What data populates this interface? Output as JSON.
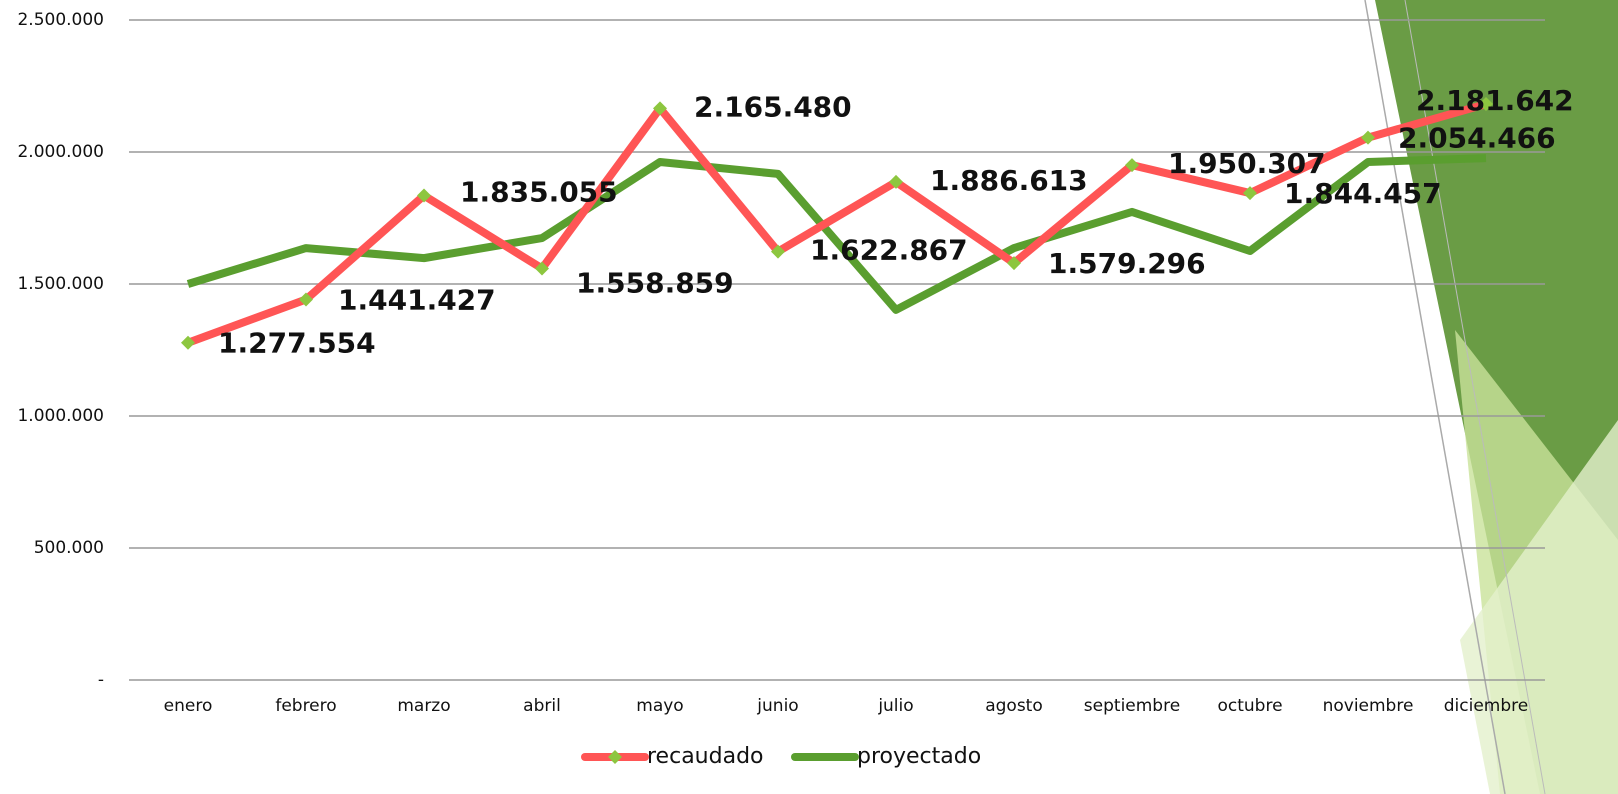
{
  "chart_data": {
    "type": "line",
    "categories": [
      "enero",
      "febrero",
      "marzo",
      "abril",
      "mayo",
      "junio",
      "julio",
      "agosto",
      "septiembre",
      "octubre",
      "noviembre",
      "diciembre"
    ],
    "series": [
      {
        "name": "recaudado",
        "color": "#ff5555",
        "marker_color": "#8dc63f",
        "values": [
          1277554,
          1441427,
          1835055,
          1558859,
          2165480,
          1622867,
          1886613,
          1579296,
          1950307,
          1844457,
          2054466,
          2181642
        ],
        "value_labels": [
          "1.277.554",
          "1.441.427",
          "1.835.055",
          "1.558.859",
          "2.165.480",
          "1.622.867",
          "1.886.613",
          "1.579.296",
          "1.950.307",
          "1.844.457",
          "2.054.466",
          "2.181.642"
        ]
      },
      {
        "name": "proyectado",
        "color": "#5a9e2f",
        "values": [
          1500000,
          1636000,
          1598000,
          1674000,
          1962000,
          1917000,
          1402000,
          1636000,
          1773000,
          1625000,
          1962000,
          1977000
        ]
      }
    ],
    "ylim": [
      0,
      2500000
    ],
    "yticks": [
      {
        "value": 0,
        "label": "-"
      },
      {
        "value": 500000,
        "label": "500.000"
      },
      {
        "value": 1000000,
        "label": "1.000.000"
      },
      {
        "value": 1500000,
        "label": "1.500.000"
      },
      {
        "value": 2000000,
        "label": "2.000.000"
      },
      {
        "value": 2500000,
        "label": "2.500.000"
      }
    ],
    "grid": true
  }
}
